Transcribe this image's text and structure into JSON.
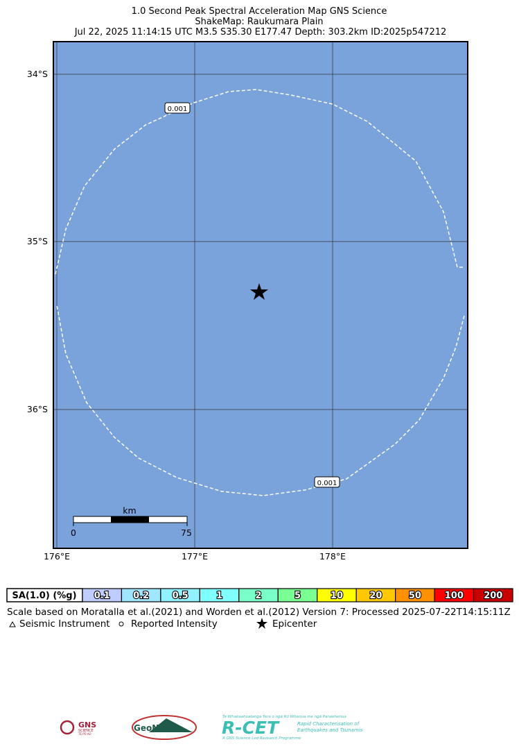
{
  "header": {
    "title": "1.0 Second Peak Spectral Acceleration Map GNS Science",
    "subtitle": "ShakeMap: Raukumara Plain",
    "info": "Jul 22, 2025 11:14:15 UTC M3.5 S35.30 E177.47 Depth: 303.2km ID:2025p547212"
  },
  "map": {
    "lat_labels": [
      "34°S",
      "35°S",
      "36°S"
    ],
    "lon_labels": [
      "176°E",
      "177°E",
      "178°E"
    ],
    "contour_labels": [
      "0.001",
      "0.001"
    ],
    "scalebar": {
      "unit": "km",
      "start": "0",
      "end": "75"
    }
  },
  "legend": {
    "label": "SA(1.0) (%g)",
    "bins": [
      {
        "label": "0.1",
        "color": "#bfccff"
      },
      {
        "label": "0.2",
        "color": "#a0e6ff"
      },
      {
        "label": "0.5",
        "color": "#90f2ff"
      },
      {
        "label": "1",
        "color": "#80ffff"
      },
      {
        "label": "2",
        "color": "#7affc8"
      },
      {
        "label": "5",
        "color": "#7aff93"
      },
      {
        "label": "10",
        "color": "#ffff00"
      },
      {
        "label": "20",
        "color": "#ffc800"
      },
      {
        "label": "50",
        "color": "#ff9100"
      },
      {
        "label": "100",
        "color": "#ff0000"
      },
      {
        "label": "200",
        "color": "#c80000"
      }
    ],
    "credits": "Scale based on Moratalla et al.(2021) and Worden et al.(2012)   Version 7: Processed 2025-07-22T14:15:11Z",
    "symbols": [
      "Seismic Instrument",
      "Reported Intensity",
      "Epicenter"
    ]
  },
  "logos": {
    "gns": "GNS",
    "gns_sub": "SCIENCE",
    "gns_maori": "TE PŪ AO",
    "geonet": "GeoNet",
    "rcet": "R-CET",
    "rcet_top": "Te Whakaahuatanga Tere o ngā Rū Whenua me ngā Parawhenua",
    "rcet_desc1": "Rapid Characterisation of",
    "rcet_desc2": "Earthquakes and Tsunamis",
    "rcet_bottom": "A GNS Science Led Research Programme"
  }
}
